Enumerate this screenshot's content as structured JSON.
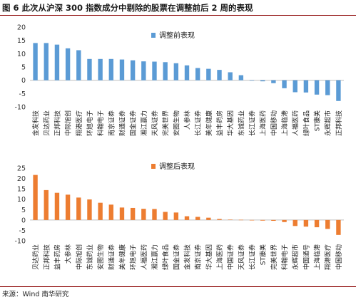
{
  "title": "图 6  此次从沪深 300 指数成分中剔除的股票在调整前后 2 周的表现",
  "source": "来源：Wind  南华研究",
  "colors": {
    "before": "#5b9bd5",
    "after": "#ed7d31"
  },
  "chart_data": [
    {
      "type": "bar",
      "legend": "调整前表现",
      "ylim": [
        -10,
        20
      ],
      "yticks": [
        20,
        15,
        10,
        5,
        0,
        -5,
        -10
      ],
      "categories": [
        "金发科技",
        "贝达药业",
        "正邦科技",
        "中际旭创",
        "翔港医疗",
        "环旭电子",
        "科翰电子",
        "南京证券",
        "财通证券",
        "国金证券",
        "湘江赢力",
        "天风证券",
        "完美世界",
        "安图生物",
        "人参林",
        "长江证券",
        "美年健康",
        "益丰药房",
        "华大基因",
        "东诚药业",
        "长江证券",
        "上海医药",
        "中国移动",
        "上海临港",
        "人福医药",
        "绿叶食品",
        "ST康美",
        "永辉超市",
        "正邦科技"
      ],
      "values": [
        14.0,
        14.0,
        13.4,
        12.0,
        11.3,
        8.0,
        8.0,
        8.0,
        7.8,
        7.5,
        7.1,
        7.0,
        6.8,
        6.4,
        5.6,
        4.6,
        4.3,
        3.9,
        3.0,
        1.9,
        0.0,
        -0.4,
        -1.1,
        -3.0,
        -4.5,
        -4.6,
        -5.4,
        -5.6,
        -7.8
      ]
    },
    {
      "type": "bar",
      "legend": "调整后表现",
      "ylim": [
        -10,
        25
      ],
      "yticks": [
        25,
        20,
        15,
        10,
        5,
        0,
        -5,
        -10
      ],
      "categories": [
        "贝达药业",
        "正邦科技",
        "益丰药房",
        "大参林",
        "中际旭创",
        "东诚药业",
        "安图生物",
        "财通证券",
        "美年健康",
        "环旭电子",
        "人福医药",
        "湘江赢力",
        "绿叶食品",
        "国金证券",
        "金发科技",
        "南京证券",
        "华大基因",
        "上海医药",
        "中国证券",
        "天风证券",
        "长江证券",
        "ST康美",
        "完美世界",
        "科翰电子",
        "永辉超市",
        "中国通号",
        "上海临港",
        "翔港医疗",
        "中国移动"
      ],
      "values": [
        21.7,
        14.4,
        13.1,
        12.2,
        10.8,
        9.9,
        8.3,
        7.4,
        6.0,
        5.8,
        5.4,
        5.3,
        3.9,
        3.6,
        1.8,
        1.5,
        1.1,
        0.5,
        0.2,
        0.1,
        0.0,
        -0.3,
        -0.4,
        -1.0,
        -2.9,
        -3.2,
        -3.5,
        -4.3,
        -7.2
      ]
    }
  ]
}
